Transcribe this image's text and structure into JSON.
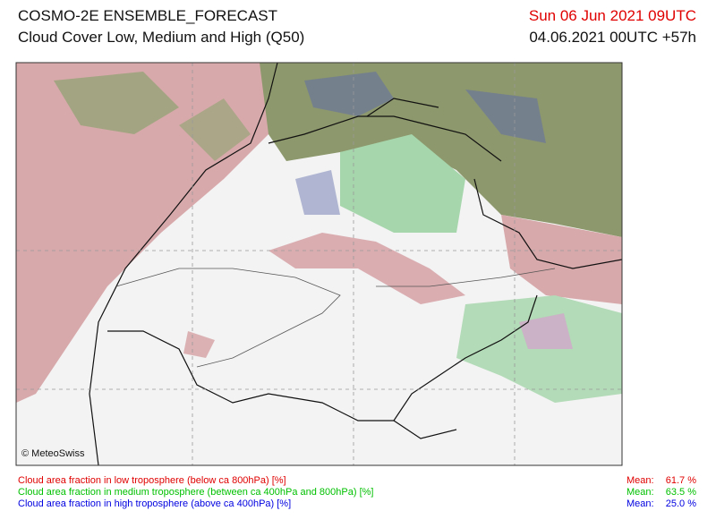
{
  "header": {
    "title": "COSMO-2E ENSEMBLE_FORECAST",
    "subtitle": "Cloud Cover Low, Medium and High (Q50)",
    "valid_time": "Sun 06 Jun 2021 09UTC",
    "run_time": "04.06.2021 00UTC +57h"
  },
  "map": {
    "credit": "© MeteoSwiss"
  },
  "legend": [
    {
      "label": "Cloud area fraction in low troposphere (below ca 800hPa) [%]",
      "mean_label": "Mean:",
      "mean": "61.7 %",
      "color": "#e00000"
    },
    {
      "label": "Cloud area fraction in medium troposphere (between ca 400hPa and 800hPa) [%]",
      "mean_label": "Mean:",
      "mean": "63.5 %",
      "color": "#00c000"
    },
    {
      "label": "Cloud area fraction in high troposphere (above ca 400hPa) [%]",
      "mean_label": "Mean:",
      "mean": "25.0 %",
      "color": "#0000e0"
    }
  ]
}
